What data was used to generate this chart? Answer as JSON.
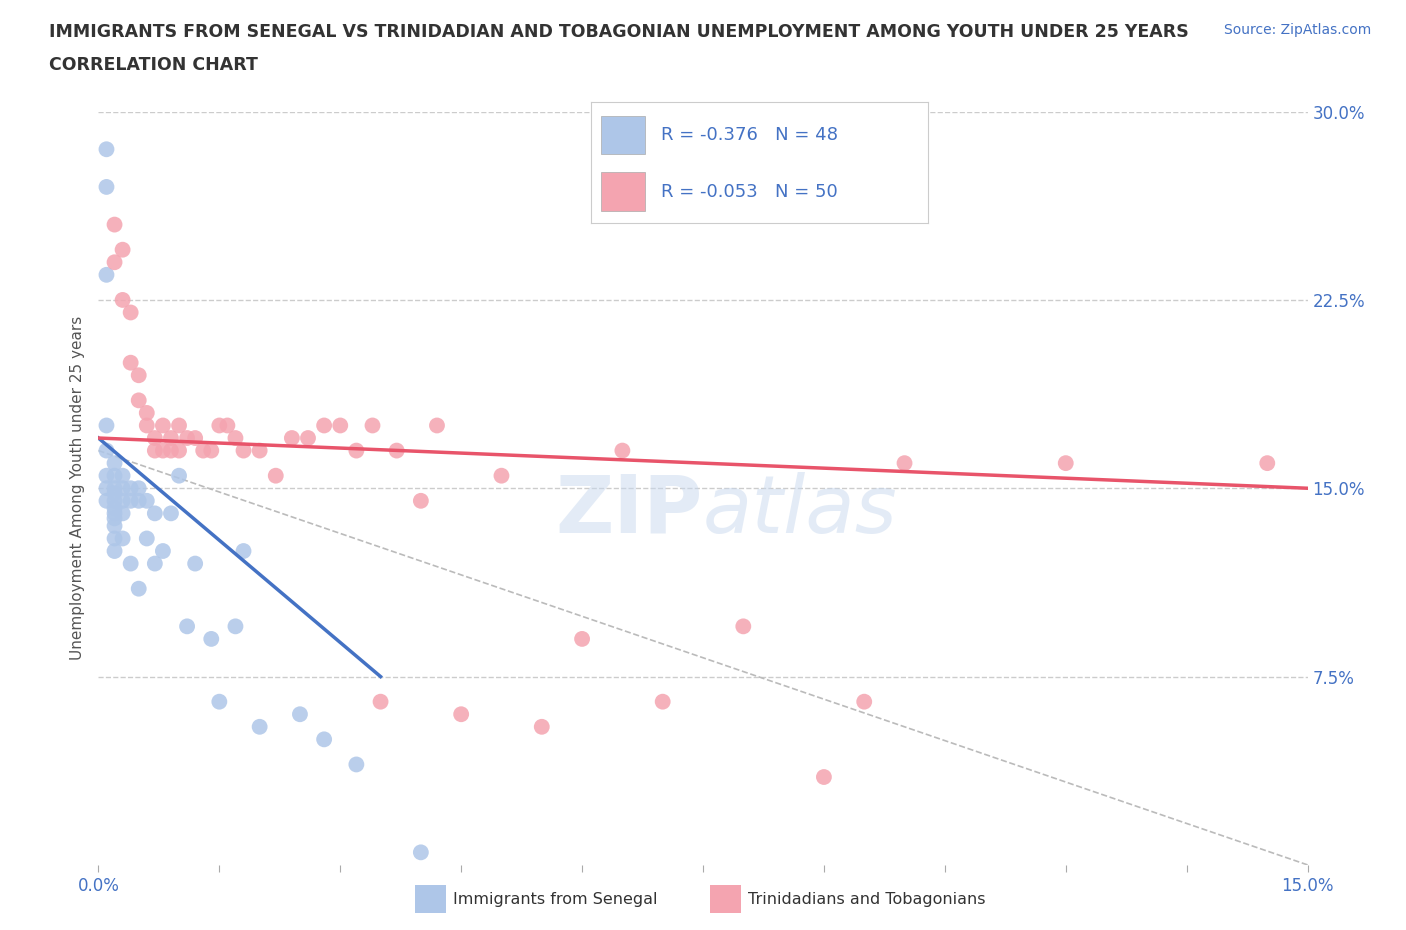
{
  "title_line1": "IMMIGRANTS FROM SENEGAL VS TRINIDADIAN AND TOBAGONIAN UNEMPLOYMENT AMONG YOUTH UNDER 25 YEARS",
  "title_line2": "CORRELATION CHART",
  "source_text": "Source: ZipAtlas.com",
  "ylabel": "Unemployment Among Youth under 25 years",
  "watermark": "ZIPatlas",
  "xlim": [
    0.0,
    0.15
  ],
  "ylim": [
    0.0,
    0.3
  ],
  "yticks_right": [
    0.0,
    0.075,
    0.15,
    0.225,
    0.3
  ],
  "ytick_labels_right": [
    "",
    "7.5%",
    "15.0%",
    "22.5%",
    "30.0%"
  ],
  "grid_color": "#cccccc",
  "background_color": "#ffffff",
  "senegal_color": "#aec6e8",
  "senegal_line_color": "#4472c4",
  "trinidadian_color": "#f4a4b0",
  "trinidadian_line_color": "#e8546a",
  "legend_text_color": "#4472c4",
  "R_senegal": -0.376,
  "N_senegal": 48,
  "R_trinidadian": -0.053,
  "N_trinidadian": 50,
  "senegal_line_x0": 0.0,
  "senegal_line_y0": 0.17,
  "senegal_line_x1": 0.035,
  "senegal_line_y1": 0.075,
  "trinidadian_line_x0": 0.0,
  "trinidadian_line_y0": 0.17,
  "trinidadian_line_x1": 0.15,
  "trinidadian_line_y1": 0.15,
  "dash_line_x0": 0.0,
  "dash_line_y0": 0.165,
  "dash_line_x1": 0.15,
  "dash_line_y1": 0.0,
  "senegal_x": [
    0.001,
    0.001,
    0.001,
    0.001,
    0.001,
    0.001,
    0.001,
    0.001,
    0.002,
    0.002,
    0.002,
    0.002,
    0.002,
    0.002,
    0.002,
    0.002,
    0.002,
    0.002,
    0.002,
    0.003,
    0.003,
    0.003,
    0.003,
    0.003,
    0.004,
    0.004,
    0.004,
    0.005,
    0.005,
    0.005,
    0.006,
    0.006,
    0.007,
    0.007,
    0.008,
    0.009,
    0.01,
    0.011,
    0.012,
    0.014,
    0.015,
    0.017,
    0.018,
    0.02,
    0.025,
    0.028,
    0.032,
    0.04
  ],
  "senegal_y": [
    0.285,
    0.27,
    0.235,
    0.175,
    0.165,
    0.155,
    0.15,
    0.145,
    0.16,
    0.155,
    0.15,
    0.148,
    0.145,
    0.142,
    0.14,
    0.138,
    0.135,
    0.13,
    0.125,
    0.155,
    0.15,
    0.145,
    0.14,
    0.13,
    0.15,
    0.145,
    0.12,
    0.15,
    0.145,
    0.11,
    0.145,
    0.13,
    0.14,
    0.12,
    0.125,
    0.14,
    0.155,
    0.095,
    0.12,
    0.09,
    0.065,
    0.095,
    0.125,
    0.055,
    0.06,
    0.05,
    0.04,
    0.005
  ],
  "trinidadian_x": [
    0.002,
    0.002,
    0.003,
    0.003,
    0.004,
    0.004,
    0.005,
    0.005,
    0.006,
    0.006,
    0.007,
    0.007,
    0.008,
    0.008,
    0.009,
    0.009,
    0.01,
    0.01,
    0.011,
    0.012,
    0.013,
    0.014,
    0.015,
    0.016,
    0.017,
    0.018,
    0.02,
    0.022,
    0.024,
    0.026,
    0.028,
    0.03,
    0.032,
    0.034,
    0.035,
    0.037,
    0.04,
    0.042,
    0.045,
    0.05,
    0.055,
    0.06,
    0.065,
    0.07,
    0.08,
    0.09,
    0.095,
    0.1,
    0.12,
    0.145
  ],
  "trinidadian_y": [
    0.255,
    0.24,
    0.245,
    0.225,
    0.22,
    0.2,
    0.195,
    0.185,
    0.18,
    0.175,
    0.17,
    0.165,
    0.175,
    0.165,
    0.165,
    0.17,
    0.175,
    0.165,
    0.17,
    0.17,
    0.165,
    0.165,
    0.175,
    0.175,
    0.17,
    0.165,
    0.165,
    0.155,
    0.17,
    0.17,
    0.175,
    0.175,
    0.165,
    0.175,
    0.065,
    0.165,
    0.145,
    0.175,
    0.06,
    0.155,
    0.055,
    0.09,
    0.165,
    0.065,
    0.095,
    0.035,
    0.065,
    0.16,
    0.16,
    0.16
  ]
}
